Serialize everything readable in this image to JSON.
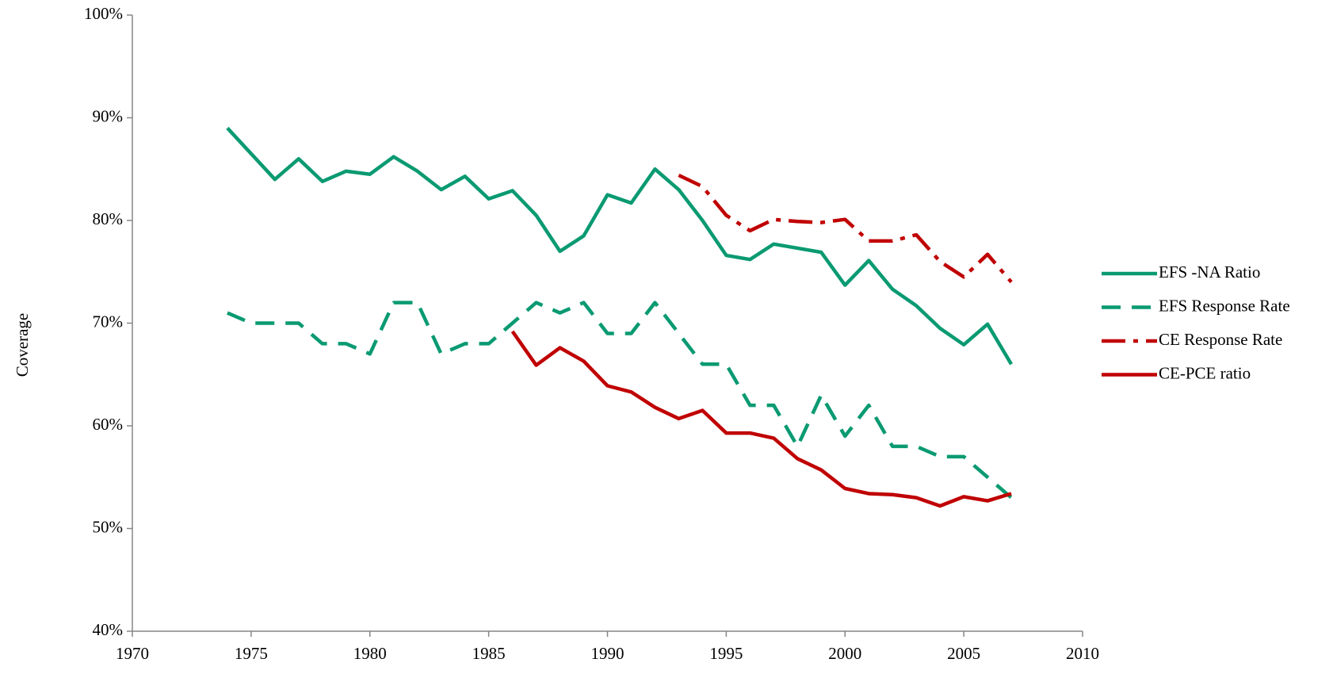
{
  "chart_data": {
    "type": "line",
    "y_label": "Coverage",
    "x": [
      1974,
      1975,
      1976,
      1977,
      1978,
      1979,
      1980,
      1981,
      1982,
      1983,
      1984,
      1985,
      1986,
      1987,
      1988,
      1989,
      1990,
      1991,
      1992,
      1993,
      1994,
      1995,
      1996,
      1997,
      1998,
      1999,
      2000,
      2001,
      2002,
      2003,
      2004,
      2005,
      2006,
      2007
    ],
    "series": [
      {
        "name": "EFS -NA Ratio",
        "color": "#0a9a72",
        "dash": "solid",
        "values": [
          89,
          86.5,
          84,
          86,
          83.8,
          84.8,
          84.5,
          86.2,
          84.8,
          83,
          84.3,
          82.1,
          82.9,
          80.5,
          77,
          78.5,
          82.5,
          81.7,
          85,
          83,
          80,
          76.6,
          76.2,
          77.7,
          77.3,
          76.9,
          73.7,
          76.1,
          73.3,
          71.7,
          69.5,
          67.9,
          69.9,
          66
        ]
      },
      {
        "name": "EFS Response Rate",
        "color": "#0a9a72",
        "dash": "dash",
        "values": [
          71,
          70,
          70,
          70,
          68,
          68,
          67,
          72,
          72,
          67,
          68,
          68,
          70,
          72,
          71,
          72,
          69,
          69,
          72,
          69,
          66,
          66,
          62,
          62,
          58,
          63,
          59,
          62,
          58,
          58,
          57,
          57,
          55,
          53
        ]
      },
      {
        "name": "CE Response Rate",
        "color": "#c00000",
        "dash": "longdash-dot",
        "values": [
          null,
          null,
          null,
          null,
          null,
          null,
          null,
          null,
          null,
          null,
          null,
          null,
          null,
          null,
          null,
          null,
          null,
          null,
          null,
          84.4,
          83.3,
          80.5,
          79,
          80.1,
          79.9,
          79.8,
          80.1,
          78,
          78,
          78.6,
          76,
          74.5,
          76.7,
          74
        ]
      },
      {
        "name": "CE-PCE ratio",
        "color": "#c00000",
        "dash": "solid",
        "values": [
          null,
          null,
          null,
          null,
          null,
          null,
          null,
          null,
          null,
          null,
          null,
          null,
          69.2,
          65.9,
          67.6,
          66.3,
          63.9,
          63.3,
          61.8,
          60.7,
          61.5,
          59.3,
          59.3,
          58.8,
          56.8,
          55.7,
          53.9,
          53.4,
          53.3,
          53,
          52.2,
          53.1,
          52.7,
          53.4
        ]
      }
    ],
    "xlim": [
      1970,
      2010
    ],
    "xticks": [
      1970,
      1975,
      1980,
      1985,
      1990,
      1995,
      2000,
      2005,
      2010
    ],
    "ylim": [
      40,
      100
    ],
    "yticks": [
      {
        "value": 40,
        "label": "40%"
      },
      {
        "value": 50,
        "label": "50%"
      },
      {
        "value": 60,
        "label": "60%"
      },
      {
        "value": 70,
        "label": "70%"
      },
      {
        "value": 80,
        "label": "80%"
      },
      {
        "value": 90,
        "label": "90%"
      },
      {
        "value": 100,
        "label": "100%"
      }
    ],
    "grid": false,
    "legend": "right"
  }
}
